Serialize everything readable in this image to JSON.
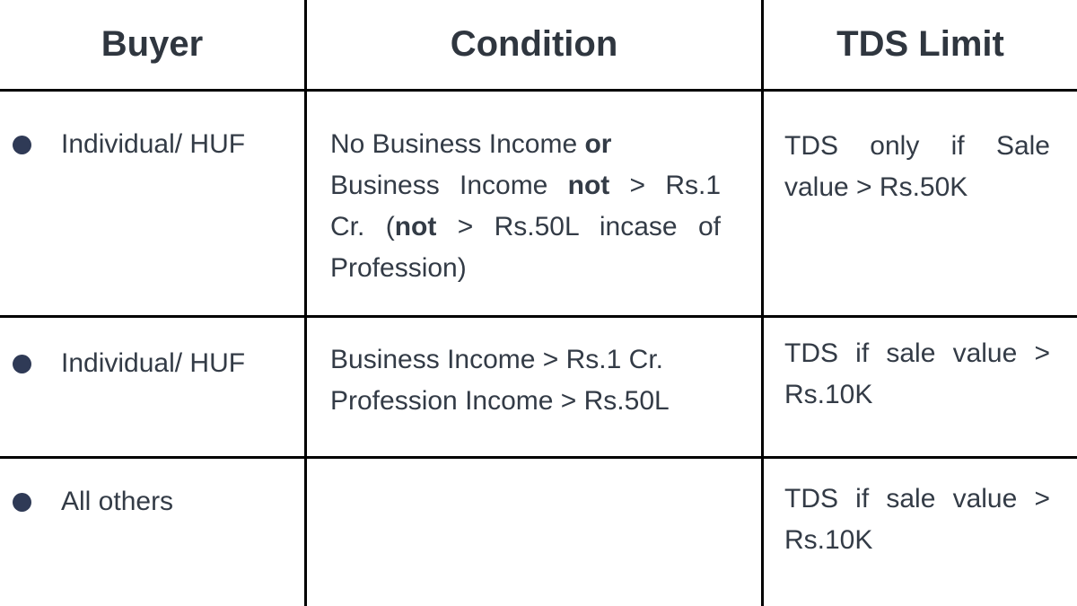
{
  "colors": {
    "body_text": "#333b46",
    "header_text": "#2f363f",
    "bullet": "#2f3a56",
    "grid_line": "#000000",
    "background": "#ffffff"
  },
  "header": {
    "buyer": "Buyer",
    "condition": "Condition",
    "tds_limit": "TDS Limit"
  },
  "rows": [
    {
      "buyer": "Individual/ HUF",
      "condition": [
        {
          "pre": "No Business Income ",
          "bold": "or",
          "post": ""
        },
        {
          "pre": "Business Income ",
          "bold": "not",
          "post": " > Rs.1"
        },
        {
          "pre": "Cr. (",
          "bold": "not",
          "post": " > Rs.50L incase of"
        },
        {
          "pre": "Profession)",
          "bold": "",
          "post": ""
        }
      ],
      "tds": [
        "TDS only if Sale",
        "value > Rs.50K"
      ]
    },
    {
      "buyer": "Individual/ HUF",
      "condition": [
        {
          "pre": "Business Income > Rs.1 Cr.",
          "bold": "",
          "post": ""
        },
        {
          "pre": "Profession Income > Rs.50L",
          "bold": "",
          "post": ""
        }
      ],
      "tds": [
        "TDS if sale value >",
        "Rs.10K"
      ]
    },
    {
      "buyer": "All others",
      "condition": [],
      "tds": [
        "TDS if sale value >",
        "Rs.10K"
      ]
    }
  ]
}
